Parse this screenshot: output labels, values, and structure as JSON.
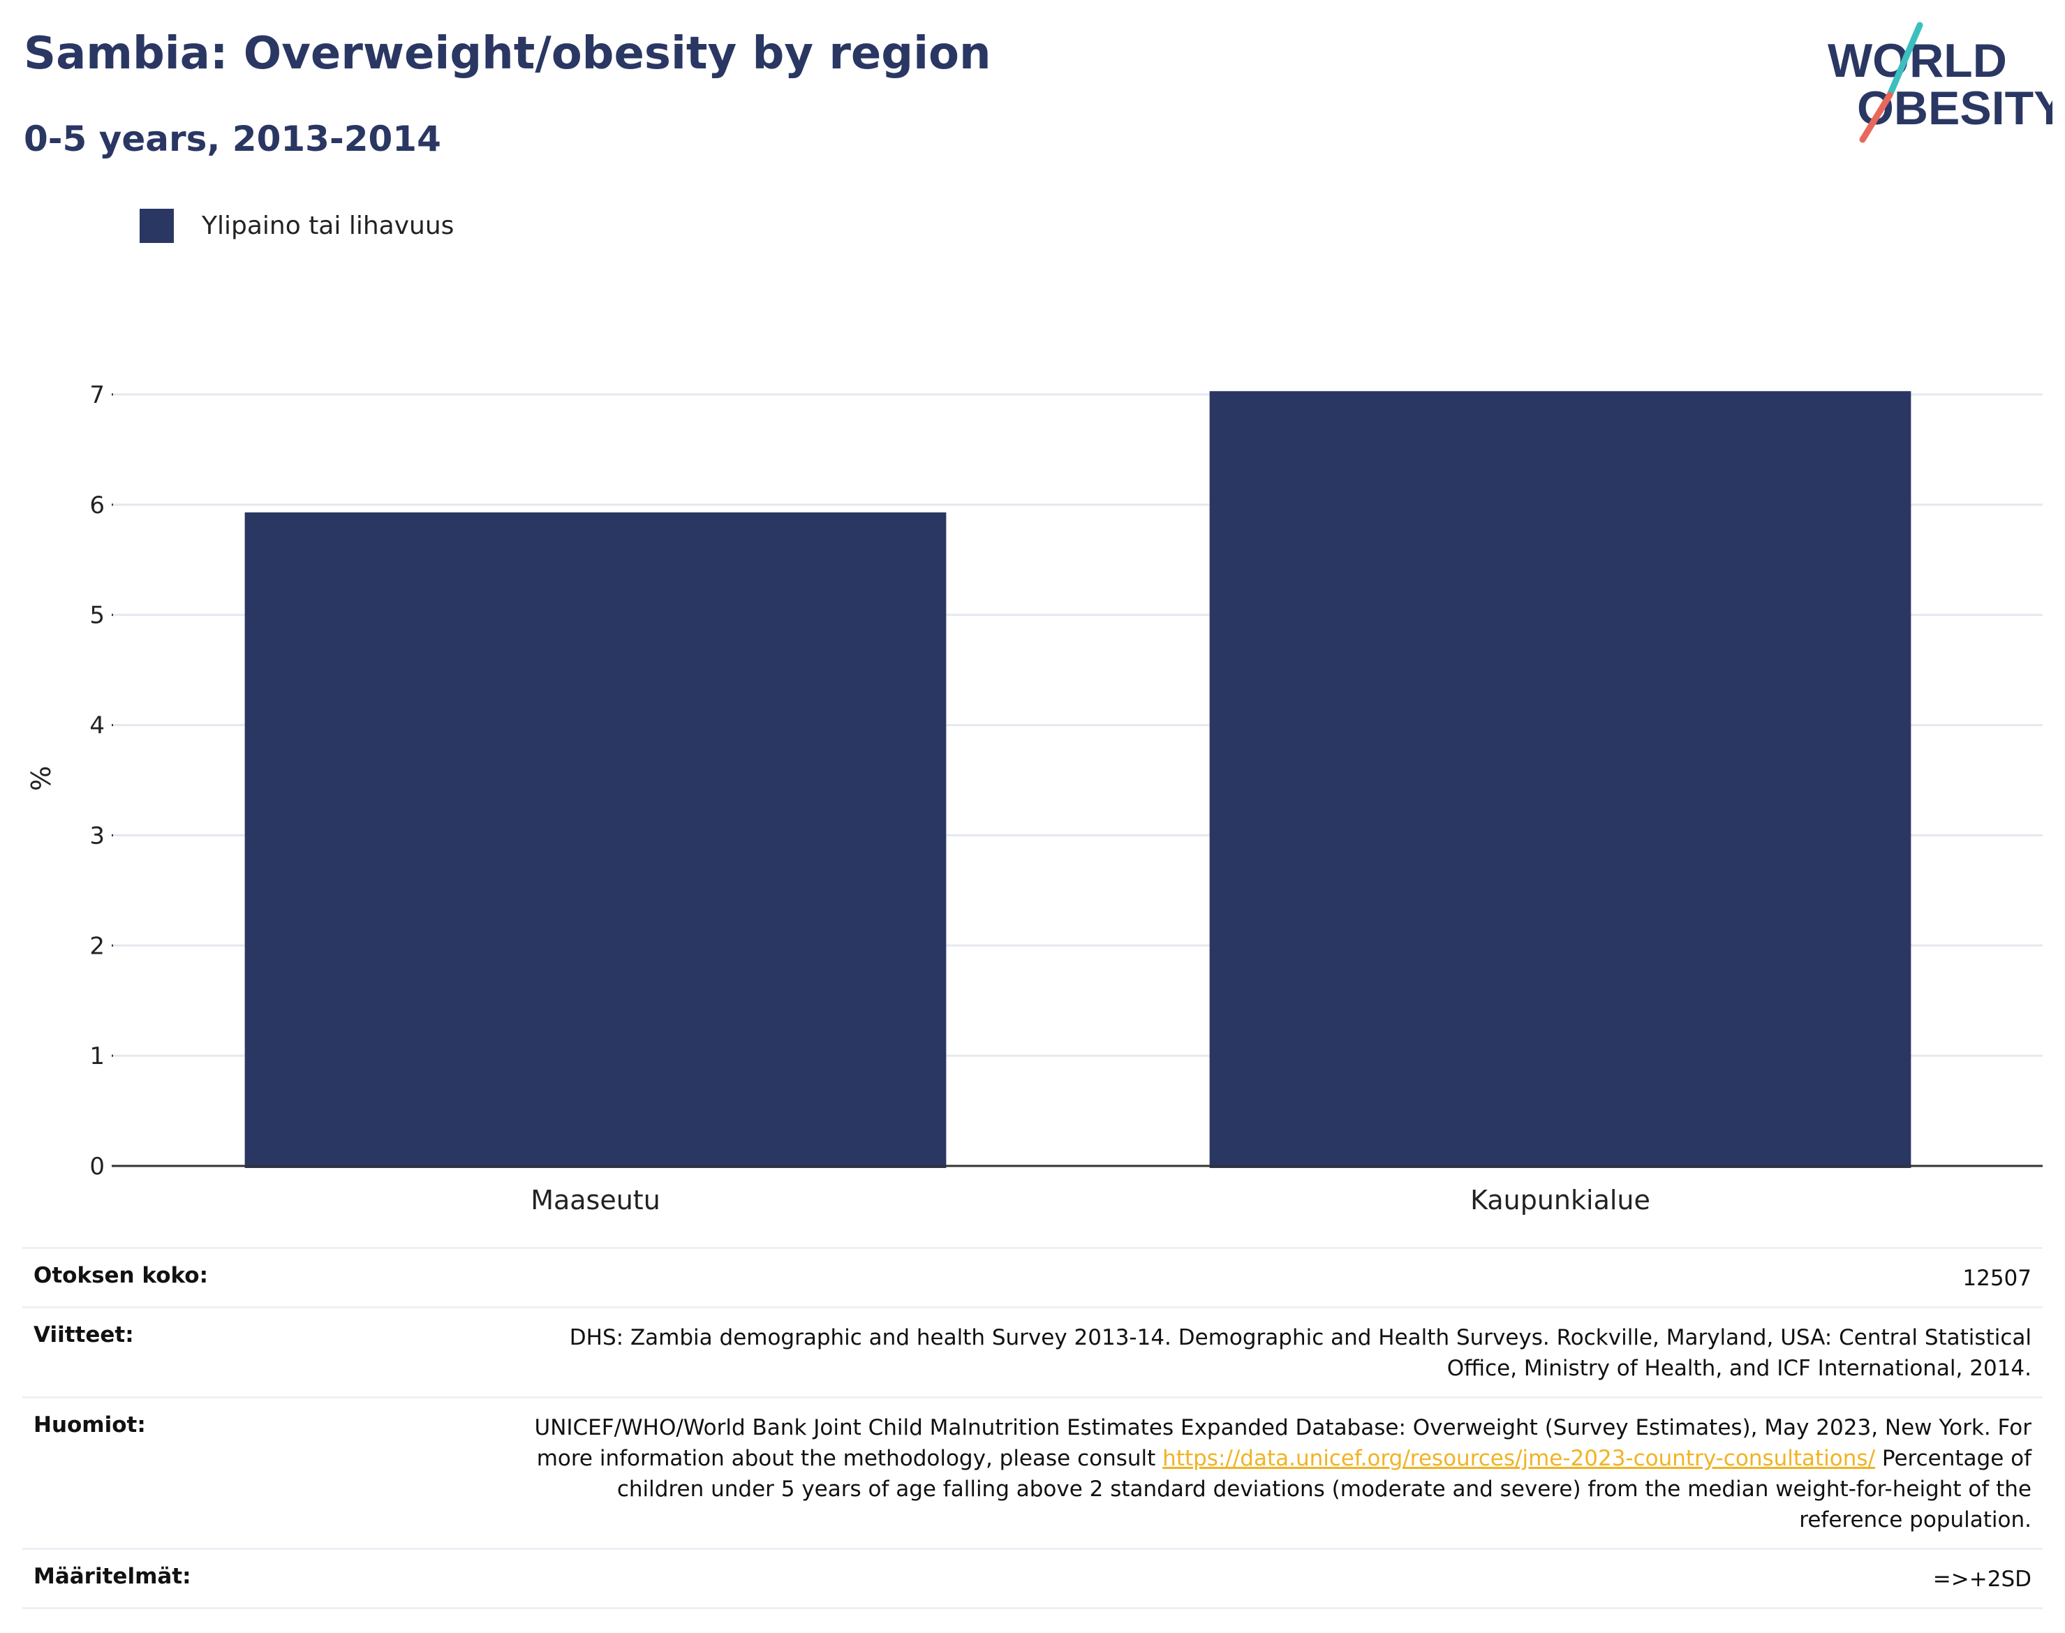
{
  "title": "Sambia: Overweight/obesity by region",
  "subtitle": "0-5 years, 2013-2014",
  "logo": {
    "line1": "WORLD",
    "line2": "OBESITY",
    "colors": {
      "text": "#2a3763",
      "slash_top": "#3cbfbf",
      "slash_bottom": "#e8685c"
    }
  },
  "colors": {
    "bar": "#2a3763",
    "grid": "#e6e8ef",
    "axis": "#333333",
    "link": "#f0b323"
  },
  "chart_data": {
    "type": "bar",
    "categories": [
      "Maaseutu",
      "Kaupunkialue"
    ],
    "series": [
      {
        "name": "Ylipaino tai lihavuus",
        "values": [
          5.93,
          7.03
        ]
      }
    ],
    "xlabel": "",
    "ylabel": "%",
    "ylim": [
      0,
      7.2
    ],
    "yticks": [
      0,
      1,
      2,
      3,
      4,
      5,
      6,
      7
    ],
    "grid": true,
    "legend": "top-left"
  },
  "info": {
    "sample": {
      "label": "Otoksen koko:",
      "value": "12507"
    },
    "references": {
      "label": "Viitteet:",
      "value": "DHS: Zambia demographic and health Survey 2013-14. Demographic and Health Surveys. Rockville, Maryland, USA: Central Statistical Office, Ministry of Health, and ICF International, 2014."
    },
    "notes": {
      "label": "Huomiot:",
      "text1": "UNICEF/WHO/World Bank Joint Child Malnutrition Estimates Expanded Database: Overweight (Survey Estimates), May 2023, New York. For more information about the methodology, please consult ",
      "link": "https://data.unicef.org/resources/jme-2023-country-consultations/",
      "text2": " Percentage of children under 5 years of age falling above 2 standard deviations (moderate and severe) from the median weight-for-height of the reference population."
    },
    "definitions": {
      "label": "Määritelmät:",
      "value": "=>+2SD"
    }
  }
}
